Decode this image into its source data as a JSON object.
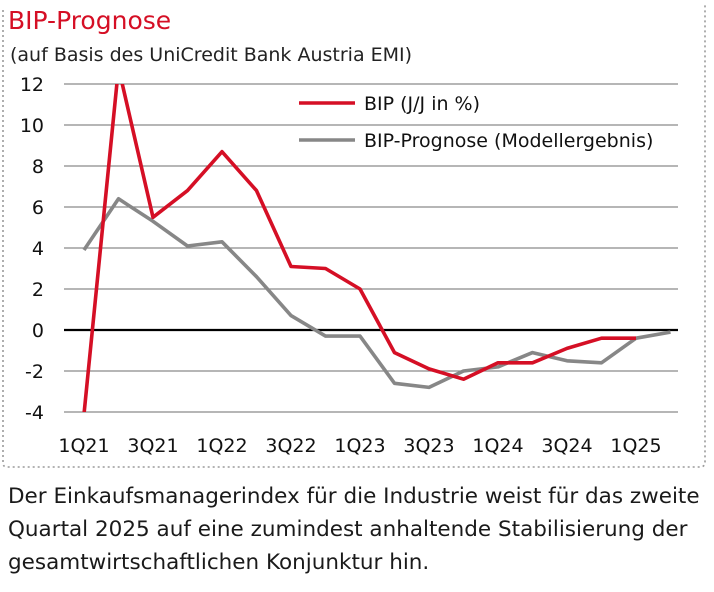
{
  "colors": {
    "bip": "#d50f25",
    "prognose": "#878787",
    "grid": "#8a8a8a",
    "zero": "#000000",
    "frame": "#9a9a9a"
  },
  "chart_data": {
    "type": "line",
    "title": "BIP-Prognose",
    "subtitle": "(auf Basis des UniCredit Bank Austria EMI)",
    "xlabel": "",
    "ylabel": "",
    "ylim": [
      -4,
      12
    ],
    "yticks": [
      -4,
      -2,
      0,
      2,
      4,
      6,
      8,
      10,
      12
    ],
    "x": [
      "1Q21",
      "2Q21",
      "3Q21",
      "4Q21",
      "1Q22",
      "2Q22",
      "3Q22",
      "4Q22",
      "1Q23",
      "2Q23",
      "3Q23",
      "4Q23",
      "1Q24",
      "2Q24",
      "3Q24",
      "4Q24",
      "1Q25",
      "2Q25"
    ],
    "xticklabels": [
      "1Q21",
      "3Q21",
      "1Q22",
      "3Q22",
      "1Q23",
      "3Q23",
      "1Q24",
      "3Q24",
      "1Q25"
    ],
    "grid": true,
    "legend_position": "top-right",
    "series": [
      {
        "name": "BIP (J/J in %)",
        "color": "#d50f25",
        "values": [
          -4.1,
          12.8,
          5.5,
          6.8,
          8.7,
          6.8,
          3.1,
          3.0,
          2.0,
          -1.1,
          -1.9,
          -2.4,
          -1.6,
          -1.6,
          -0.9,
          -0.4,
          -0.4,
          null
        ]
      },
      {
        "name": "BIP-Prognose (Modellergebnis)",
        "color": "#878787",
        "values": [
          3.9,
          6.4,
          5.3,
          4.1,
          4.3,
          2.6,
          0.7,
          -0.3,
          -0.3,
          -2.6,
          -2.8,
          -2.0,
          -1.8,
          -1.1,
          -1.5,
          -1.6,
          -0.4,
          -0.1
        ]
      }
    ]
  },
  "caption": "Der Einkaufsmanagerindex für die Industrie weist für das zweite Quartal 2025 auf eine zumindest anhaltende Stabilisierung der gesamtwirtschaftlichen Konjunktur hin."
}
